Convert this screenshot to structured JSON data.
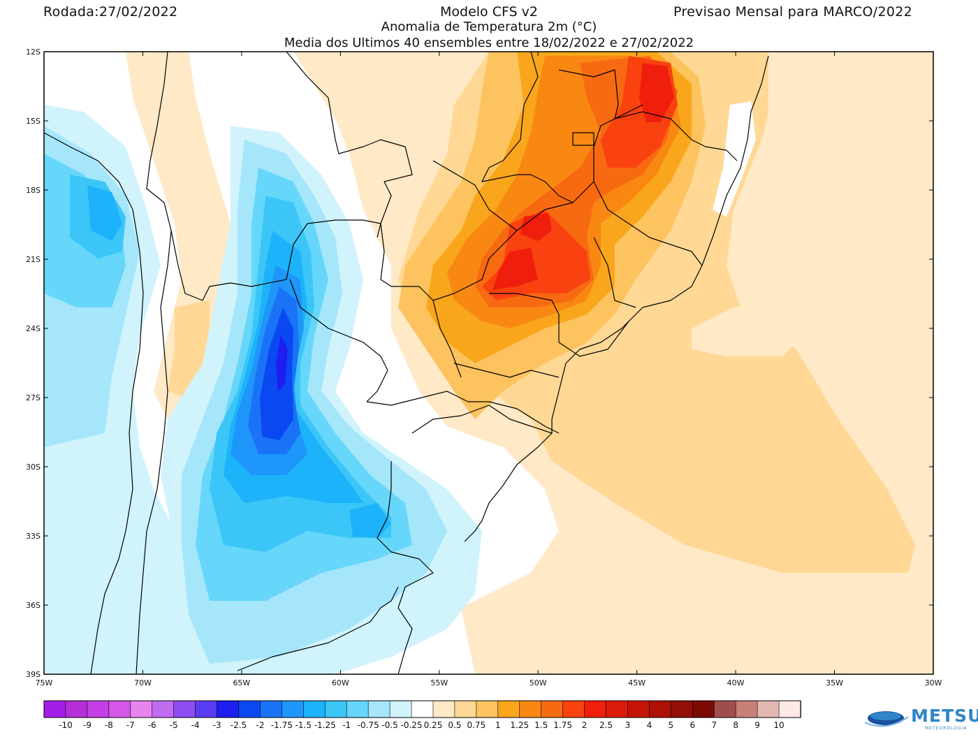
{
  "header": {
    "run_date": "Rodada:27/02/2022",
    "model": "Modelo CFS v2",
    "variable": "Anomalia de Temperatura 2m (°C)",
    "ensemble": "Media dos Ultimos 40 ensembles entre 18/02/2022 e 27/02/2022",
    "forecast": "Previsao Mensal para MARCO/2022"
  },
  "map": {
    "lat_labels": [
      "12S",
      "15S",
      "18S",
      "21S",
      "24S",
      "27S",
      "30S",
      "33S",
      "36S",
      "39S"
    ],
    "lon_labels": [
      "75W",
      "70W",
      "65W",
      "60W",
      "55W",
      "50W",
      "45W",
      "40W",
      "35W",
      "30W"
    ]
  },
  "colorbar": {
    "labels": [
      "-10",
      "-9",
      "-8",
      "-7",
      "-6",
      "-5",
      "-4",
      "-3",
      "-2.5",
      "-2",
      "-1.75",
      "-1.5",
      "-1.25",
      "-1",
      "-0.75",
      "-0.5",
      "-0.25",
      "0.25",
      "0.5",
      "0.75",
      "1",
      "1.25",
      "1.5",
      "1.75",
      "2",
      "2.5",
      "3",
      "4",
      "5",
      "6",
      "7",
      "8",
      "9",
      "10"
    ],
    "colors": [
      "#a31ee8",
      "#b62ed8",
      "#c53fe6",
      "#d657e9",
      "#e884ee",
      "#c06cf0",
      "#8c4ef2",
      "#5a3cf5",
      "#1e1ef0",
      "#0a48f2",
      "#1a73f7",
      "#1e96fa",
      "#1cb3fb",
      "#3cc6f8",
      "#66d7fa",
      "#a5e6fb",
      "#d0f3fc",
      "#ffffff",
      "#ffe9c6",
      "#ffd896",
      "#fdc35e",
      "#f9a61c",
      "#f98812",
      "#f86a11",
      "#f9420f",
      "#f01e0c",
      "#dc1a0a",
      "#c71408",
      "#ad1005",
      "#930e05",
      "#7a0a03",
      "#a24d4d",
      "#c88078",
      "#e3b8b0",
      "#fde9e6"
    ]
  },
  "logo": {
    "name": "METSUL",
    "subtitle": "METEOROLOGIA"
  }
}
